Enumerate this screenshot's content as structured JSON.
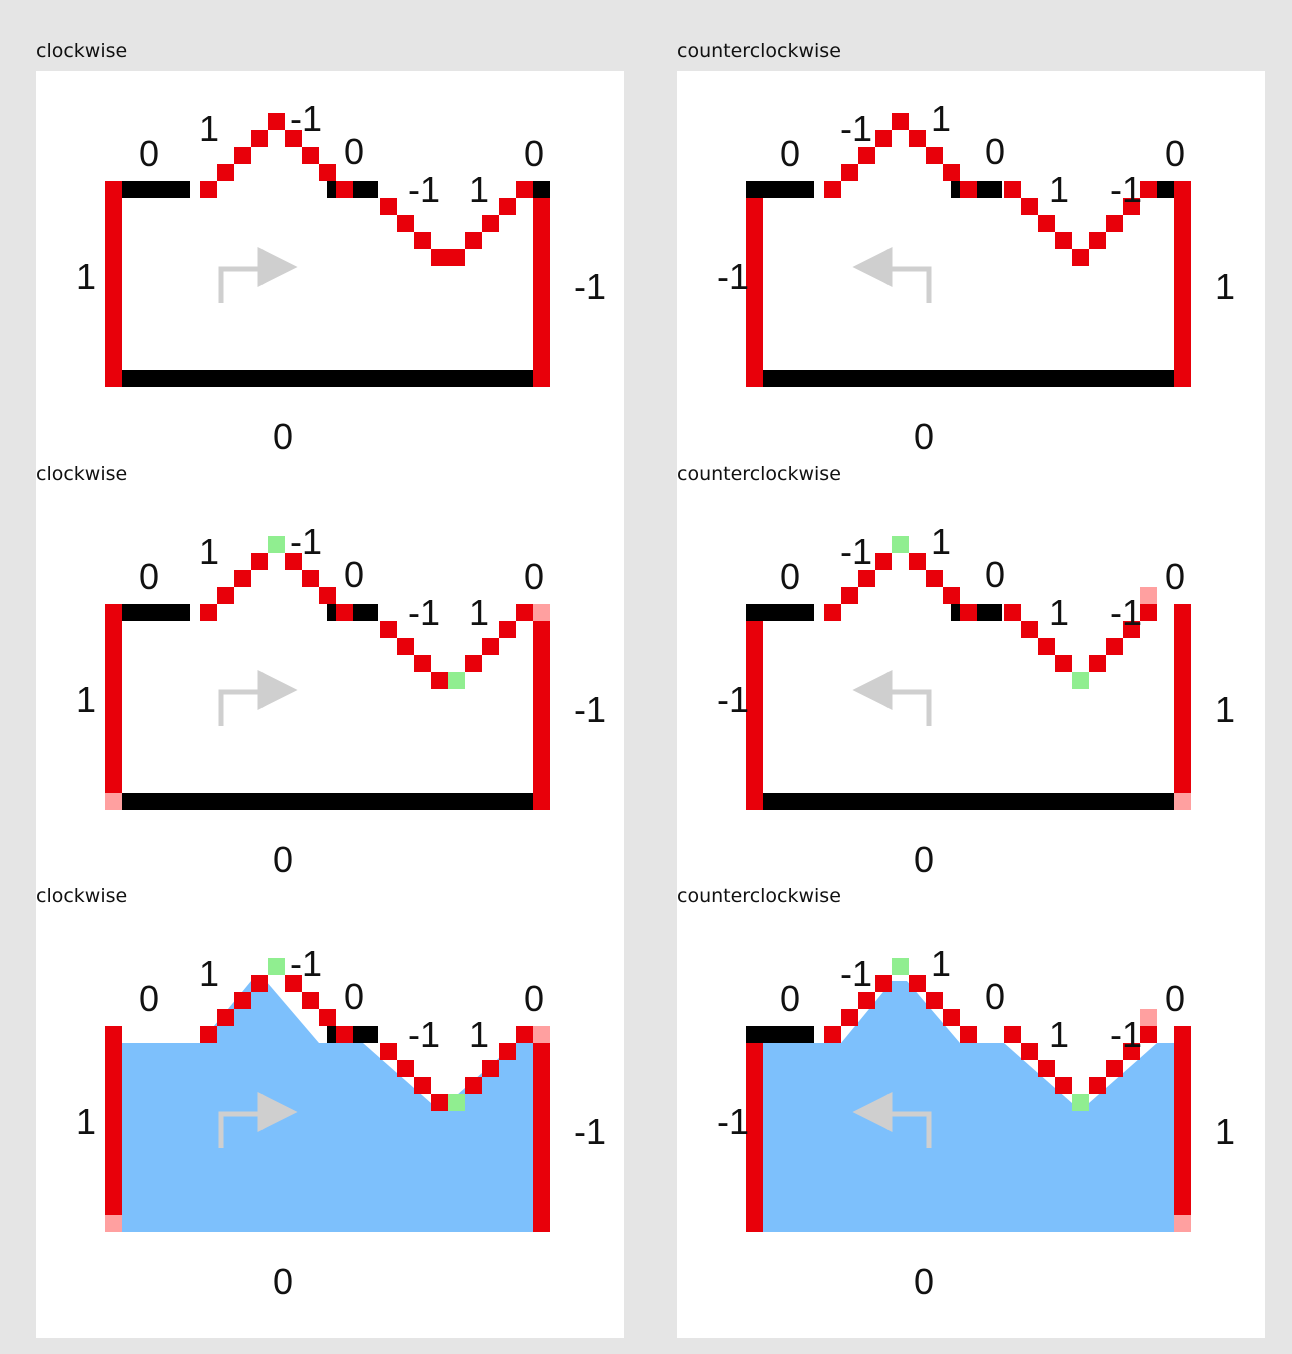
{
  "colors": {
    "background": "#e5e5e5",
    "panel": "#ffffff",
    "edge_vertical": "#e8000a",
    "edge_flat": "#000000",
    "vertex_peak": "#90ee90",
    "vertex_end": "#ffa0a0",
    "fill_region": "#7dc0fc",
    "arrow": "#cfcfcf"
  },
  "panels": [
    {
      "title": "clockwise",
      "direction": "clockwise",
      "stage": 1,
      "labels": {
        "top_left": "0",
        "left_slope": "1",
        "peak_right": "-1",
        "top_middle": "0",
        "valley_left": "-1",
        "valley_right": "1",
        "top_right": "0",
        "left_side": "1",
        "right_side": "-1",
        "bottom": "0"
      }
    },
    {
      "title": "counterclockwise",
      "direction": "counterclockwise",
      "stage": 1,
      "labels": {
        "top_left": "0",
        "left_slope": "-1",
        "peak_right": "1",
        "top_middle": "0",
        "valley_left": "1",
        "valley_right": "-1",
        "top_right": "0",
        "left_side": "-1",
        "right_side": "1",
        "bottom": "0"
      }
    },
    {
      "title": "clockwise",
      "direction": "clockwise",
      "stage": 2,
      "labels": {
        "top_left": "0",
        "left_slope": "1",
        "peak_right": "-1",
        "top_middle": "0",
        "valley_left": "-1",
        "valley_right": "1",
        "top_right": "0",
        "left_side": "1",
        "right_side": "-1",
        "bottom": "0"
      }
    },
    {
      "title": "counterclockwise",
      "direction": "counterclockwise",
      "stage": 2,
      "labels": {
        "top_left": "0",
        "left_slope": "-1",
        "peak_right": "1",
        "top_middle": "0",
        "valley_left": "1",
        "valley_right": "-1",
        "top_right": "0",
        "left_side": "-1",
        "right_side": "1",
        "bottom": "0"
      }
    },
    {
      "title": "clockwise",
      "direction": "clockwise",
      "stage": 3,
      "labels": {
        "top_left": "0",
        "left_slope": "1",
        "peak_right": "-1",
        "top_middle": "0",
        "valley_left": "-1",
        "valley_right": "1",
        "top_right": "0",
        "left_side": "1",
        "right_side": "-1",
        "bottom": "0"
      }
    },
    {
      "title": "counterclockwise",
      "direction": "counterclockwise",
      "stage": 3,
      "labels": {
        "top_left": "0",
        "left_slope": "-1",
        "peak_right": "1",
        "top_middle": "0",
        "valley_left": "1",
        "valley_right": "-1",
        "top_right": "0",
        "left_side": "-1",
        "right_side": "1",
        "bottom": "0"
      }
    }
  ]
}
